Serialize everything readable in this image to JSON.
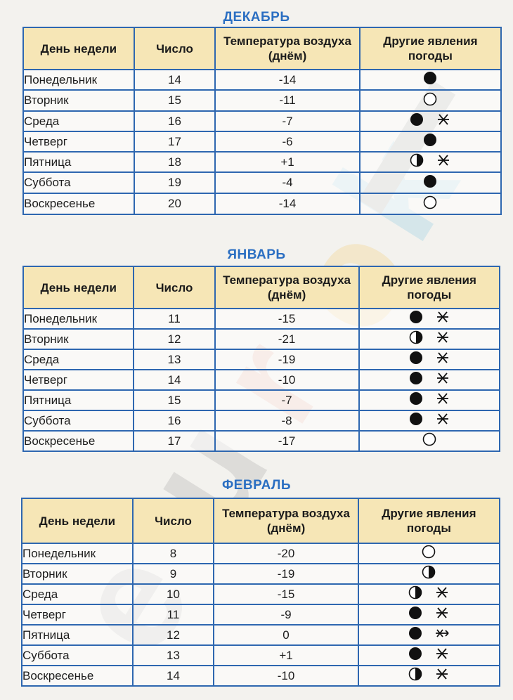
{
  "headers": {
    "day": "День недели",
    "number": "Число",
    "temp": "Температура воздуха (днём)",
    "phenomena": "Другие явления погоды"
  },
  "months": [
    {
      "title": "ДЕКАБРЬ",
      "rows": [
        {
          "day": "Понедельник",
          "number": "14",
          "temp": "-14",
          "symbols": [
            "cloudy"
          ]
        },
        {
          "day": "Вторник",
          "number": "15",
          "temp": "-11",
          "symbols": [
            "clear"
          ]
        },
        {
          "day": "Среда",
          "number": "16",
          "temp": "-7",
          "symbols": [
            "cloudy",
            "snow"
          ]
        },
        {
          "day": "Четверг",
          "number": "17",
          "temp": "-6",
          "symbols": [
            "cloudy"
          ]
        },
        {
          "day": "Пятница",
          "number": "18",
          "temp": "+1",
          "symbols": [
            "partly-cloudy",
            "snow"
          ]
        },
        {
          "day": "Суббота",
          "number": "19",
          "temp": "-4",
          "symbols": [
            "cloudy"
          ]
        },
        {
          "day": "Воскресенье",
          "number": "20",
          "temp": "-14",
          "symbols": [
            "clear"
          ]
        }
      ]
    },
    {
      "title": "ЯНВАРЬ",
      "rows": [
        {
          "day": "Понедельник",
          "number": "11",
          "temp": "-15",
          "symbols": [
            "cloudy",
            "snow"
          ]
        },
        {
          "day": "Вторник",
          "number": "12",
          "temp": "-21",
          "symbols": [
            "partly-cloudy",
            "snow"
          ]
        },
        {
          "day": "Среда",
          "number": "13",
          "temp": "-19",
          "symbols": [
            "cloudy",
            "snow"
          ]
        },
        {
          "day": "Четверг",
          "number": "14",
          "temp": "-10",
          "symbols": [
            "cloudy",
            "snow"
          ]
        },
        {
          "day": "Пятница",
          "number": "15",
          "temp": "-7",
          "symbols": [
            "cloudy",
            "snow"
          ]
        },
        {
          "day": "Суббота",
          "number": "16",
          "temp": "-8",
          "symbols": [
            "cloudy",
            "snow"
          ]
        },
        {
          "day": "Воскресенье",
          "number": "17",
          "temp": "-17",
          "symbols": [
            "clear"
          ]
        }
      ]
    },
    {
      "title": "ФЕВРАЛЬ",
      "rows": [
        {
          "day": "Понедельник",
          "number": "8",
          "temp": "-20",
          "symbols": [
            "clear"
          ]
        },
        {
          "day": "Вторник",
          "number": "9",
          "temp": "-19",
          "symbols": [
            "partly-cloudy"
          ]
        },
        {
          "day": "Среда",
          "number": "10",
          "temp": "-15",
          "symbols": [
            "partly-cloudy",
            "snow"
          ]
        },
        {
          "day": "Четверг",
          "number": "11",
          "temp": "-9",
          "symbols": [
            "cloudy",
            "snow"
          ]
        },
        {
          "day": "Пятница",
          "number": "12",
          "temp": "0",
          "symbols": [
            "cloudy",
            "blizzard"
          ]
        },
        {
          "day": "Суббота",
          "number": "13",
          "temp": "+1",
          "symbols": [
            "cloudy",
            "snow"
          ]
        },
        {
          "day": "Воскресенье",
          "number": "14",
          "temp": "-10",
          "symbols": [
            "partly-cloudy",
            "snow"
          ]
        }
      ]
    }
  ],
  "watermark": "eurokı",
  "colors": {
    "title": "#2b6fc2",
    "border": "#2e67b0",
    "header_bg": "#f6e6b6"
  }
}
